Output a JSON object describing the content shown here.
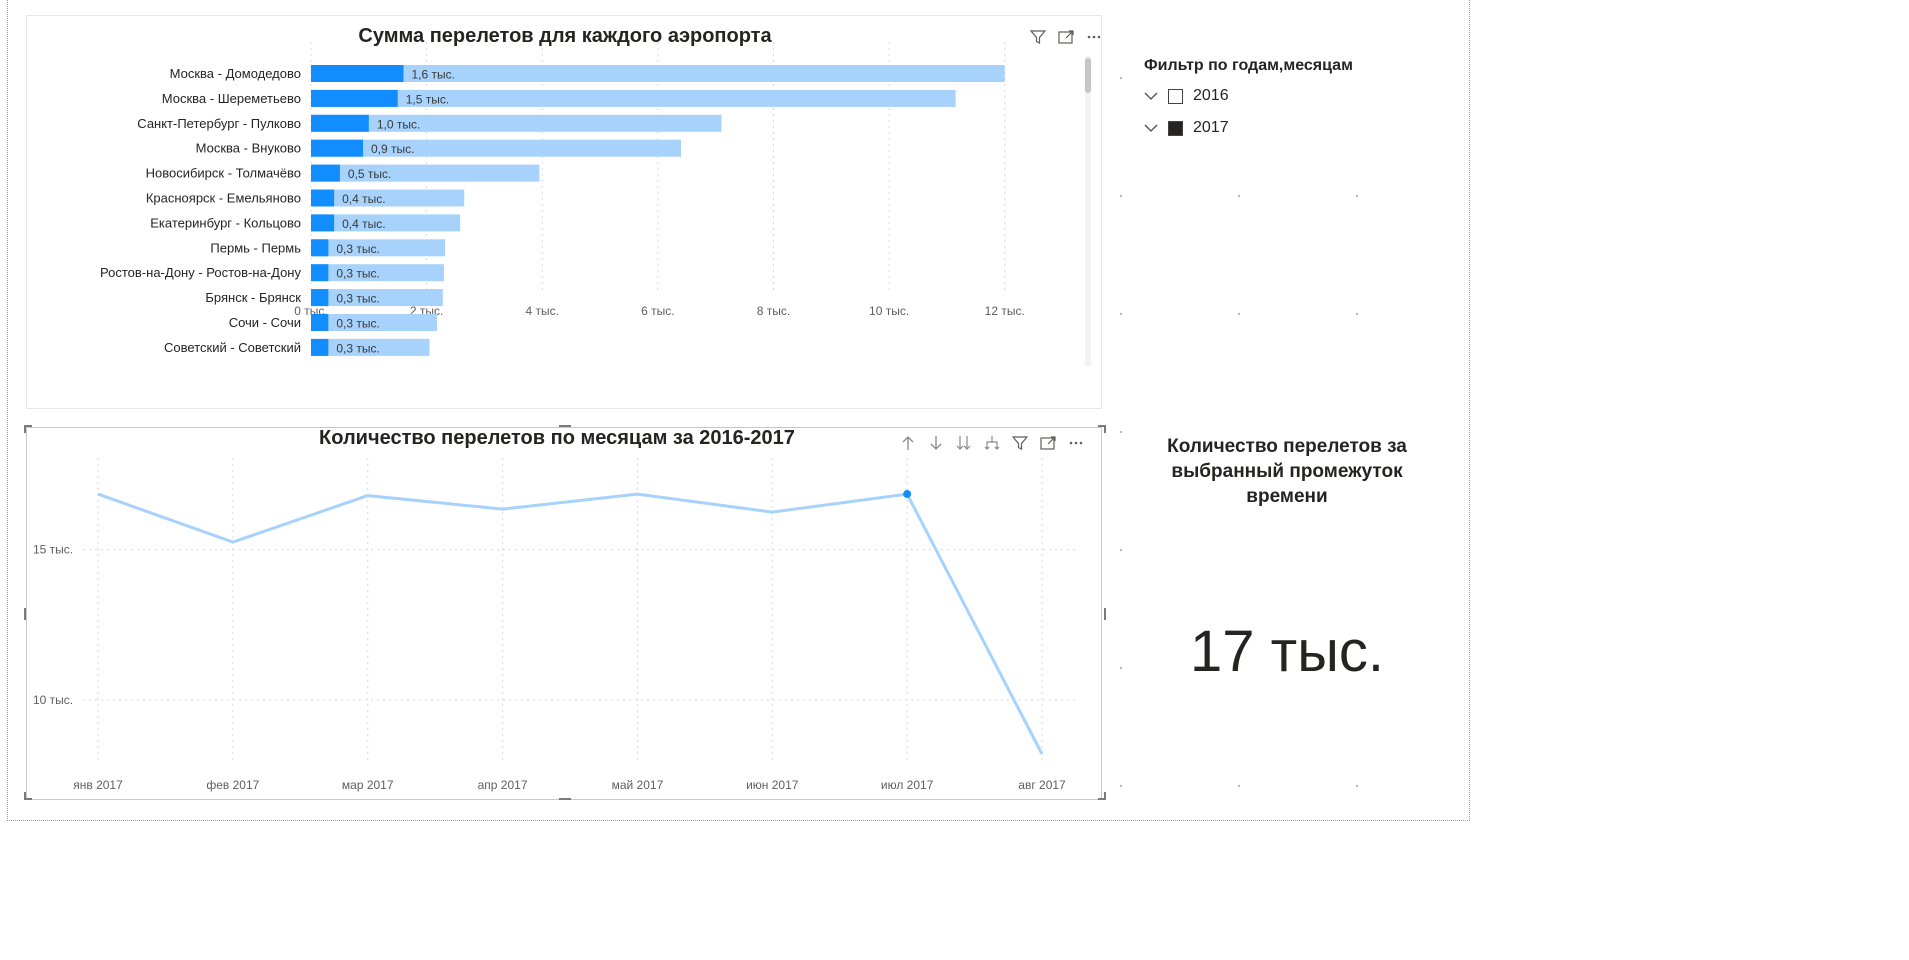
{
  "bar_visual": {
    "header_icons": [
      "filter-icon",
      "focus-mode-icon",
      "more-options-icon"
    ]
  },
  "line_visual": {
    "header_icons": [
      "drill-up-icon",
      "drill-down-icon",
      "expand-all-down-icon",
      "expand-hierarchy-icon",
      "filter-icon",
      "focus-mode-icon",
      "more-options-icon"
    ]
  },
  "slicer": {
    "title": "Фильтр по годам,месяцам",
    "items": [
      {
        "label": "2016",
        "checked": false
      },
      {
        "label": "2017",
        "checked": true
      }
    ]
  },
  "kpi_card": {
    "title": "Количество перелетов за выбранный промежуток времени",
    "value": "17 тыс."
  },
  "colors": {
    "bar_selected": "#118dff",
    "bar_total": "#a7d2fb",
    "line": "#a7d2fb",
    "highlight_point": "#118dff"
  },
  "chart_data": [
    {
      "type": "bar",
      "orientation": "horizontal",
      "title": "Сумма перелетов для каждого аэропорта",
      "categories": [
        "Москва - Домодедово",
        "Москва - Шереметьево",
        "Санкт-Петербург - Пулково",
        "Москва - Внуково",
        "Новосибирск - Толмачёво",
        "Красноярск - Емельяново",
        "Екатеринбург - Кольцово",
        "Пермь - Пермь",
        "Ростов-на-Дону - Ростов-на-Дону",
        "Брянск - Брянск",
        "Сочи - Сочи",
        "Советский - Советский"
      ],
      "series": [
        {
          "values": [
            12000,
            11150,
            7100,
            6400,
            3950,
            2650,
            2580,
            2320,
            2300,
            2280,
            2180,
            2050
          ]
        },
        {
          "values": [
            1600,
            1500,
            1000,
            900,
            500,
            400,
            400,
            300,
            300,
            300,
            300,
            300
          ]
        }
      ],
      "data_labels": [
        "1,6 тыс.",
        "1,5 тыс.",
        "1,0 тыс.",
        "0,9 тыс.",
        "0,5 тыс.",
        "0,4 тыс.",
        "0,4 тыс.",
        "0,3 тыс.",
        "0,3 тыс.",
        "0,3 тыс.",
        "0,3 тыс.",
        "0,3 тыс."
      ],
      "xlim": [
        0,
        12800
      ],
      "x_ticks": [
        0,
        2000,
        4000,
        6000,
        8000,
        10000,
        12000
      ],
      "x_tick_labels": [
        "0 тыс.",
        "2 тыс.",
        "4 тыс.",
        "6 тыс.",
        "8 тыс.",
        "10 тыс.",
        "12 тыс."
      ],
      "grid": true
    },
    {
      "type": "line",
      "title": "Количество перелетов по месяцам за 2016-2017",
      "x": [
        "янв 2017",
        "фев 2017",
        "мар 2017",
        "апр 2017",
        "май 2017",
        "июн 2017",
        "июл 2017",
        "авг 2017"
      ],
      "values": [
        16850,
        15250,
        16800,
        16350,
        16850,
        16250,
        16850,
        8200
      ],
      "highlighted_index": 6,
      "ylim": [
        7900,
        18050
      ],
      "y_ticks": [
        10000,
        15000
      ],
      "y_tick_labels": [
        "10 тыс.",
        "15 тыс."
      ],
      "grid": true
    }
  ]
}
